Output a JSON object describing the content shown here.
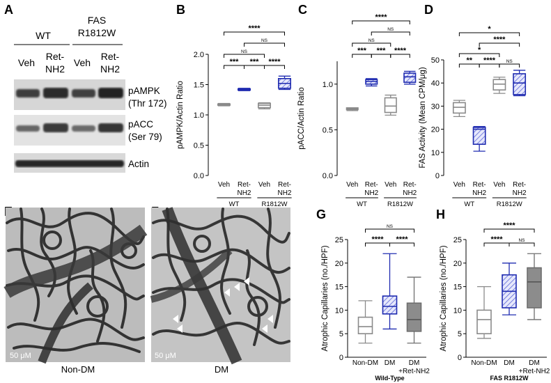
{
  "panels": {
    "A": "A",
    "B": "B",
    "C": "C",
    "D": "D",
    "E": "E",
    "F": "F",
    "G": "G",
    "H": "H"
  },
  "blot": {
    "wt_label": "WT",
    "fas_label_line1": "FAS",
    "fas_label_line2": "R1812W",
    "veh": "Veh",
    "ret_line1": "Ret-",
    "ret_line2": "NH2",
    "bands": [
      {
        "line1": "pAMPK",
        "line2": "(Thr 172)"
      },
      {
        "line1": "pACC",
        "line2": "(Ser 79)"
      },
      {
        "line1": "Actin",
        "line2": ""
      }
    ]
  },
  "images": {
    "E_scale": "50 μM",
    "F_scale": "50 μM",
    "E_caption": "Non-DM",
    "F_caption": "DM"
  },
  "colors": {
    "gray": "#8a8a8a",
    "blue": "#1f2bb0",
    "hatch_blue": "#2d39c4",
    "dark_gray_fill": "#8c8c8c"
  },
  "chart_data": [
    {
      "id": "B",
      "type": "box",
      "ylabel": "pAMPK/Actin Ratio",
      "ylim": [
        0.0,
        2.0
      ],
      "yticks": [
        "0.0",
        "0.5",
        "1.0",
        "1.5",
        "2.0"
      ],
      "categories": [
        [
          "Veh"
        ],
        [
          "Ret-",
          "NH2"
        ],
        [
          "Veh"
        ],
        [
          "Ret-",
          "NH2"
        ]
      ],
      "groups": [
        {
          "label": "WT",
          "span": [
            0,
            1
          ]
        },
        {
          "label": "R1812W",
          "span": [
            2,
            3
          ]
        }
      ],
      "boxes": [
        {
          "min": 1.15,
          "q1": 1.16,
          "median": 1.17,
          "q3": 1.18,
          "max": 1.19,
          "style": "gray"
        },
        {
          "min": 1.4,
          "q1": 1.41,
          "median": 1.42,
          "q3": 1.43,
          "max": 1.44,
          "style": "blue-hatch"
        },
        {
          "min": 1.1,
          "q1": 1.12,
          "median": 1.16,
          "q3": 1.19,
          "max": 1.2,
          "style": "gray"
        },
        {
          "min": 1.42,
          "q1": 1.44,
          "median": 1.52,
          "q3": 1.6,
          "max": 1.64,
          "style": "blue-hatch"
        }
      ],
      "brackets": [
        {
          "from": 0,
          "to": 1,
          "text": "***",
          "level": 0
        },
        {
          "from": 1,
          "to": 2,
          "text": "***",
          "level": 0
        },
        {
          "from": 2,
          "to": 3,
          "text": "****",
          "level": 0
        },
        {
          "from": 0,
          "to": 2,
          "text": "NS",
          "level": 1
        },
        {
          "from": 1,
          "to": 3,
          "text": "NS",
          "level": 2
        },
        {
          "from": 0,
          "to": 3,
          "text": "****",
          "level": 3
        }
      ]
    },
    {
      "id": "C",
      "type": "box",
      "ylabel": "pACC/Actin Ratio",
      "ylim": [
        0.0,
        1.25
      ],
      "yticks": [
        "0.0",
        "0.5",
        "1.0"
      ],
      "ytick_values": [
        0.0,
        0.5,
        1.0
      ],
      "categories": [
        [
          "Veh"
        ],
        [
          "Ret-",
          "NH2"
        ],
        [
          "Veh"
        ],
        [
          "Ret-",
          "NH2"
        ]
      ],
      "groups": [
        {
          "label": "WT",
          "span": [
            0,
            1
          ]
        },
        {
          "label": "R1812W",
          "span": [
            2,
            3
          ]
        }
      ],
      "boxes": [
        {
          "min": 0.71,
          "q1": 0.72,
          "median": 0.73,
          "q3": 0.74,
          "max": 0.74,
          "style": "gray"
        },
        {
          "min": 0.98,
          "q1": 1.0,
          "median": 1.03,
          "q3": 1.05,
          "max": 1.06,
          "style": "blue-hatch"
        },
        {
          "min": 0.66,
          "q1": 0.69,
          "median": 0.76,
          "q3": 0.85,
          "max": 0.88,
          "style": "gray"
        },
        {
          "min": 1.0,
          "q1": 1.02,
          "median": 1.08,
          "q3": 1.12,
          "max": 1.14,
          "style": "blue-hatch"
        }
      ],
      "brackets": [
        {
          "from": 0,
          "to": 1,
          "text": "***",
          "level": 0
        },
        {
          "from": 1,
          "to": 2,
          "text": "***",
          "level": 0
        },
        {
          "from": 2,
          "to": 3,
          "text": "****",
          "level": 0
        },
        {
          "from": 0,
          "to": 2,
          "text": "NS",
          "level": 1
        },
        {
          "from": 1,
          "to": 3,
          "text": "NS",
          "level": 2
        },
        {
          "from": 0,
          "to": 3,
          "text": "****",
          "level": 3
        }
      ]
    },
    {
      "id": "D",
      "type": "box",
      "ylabel": "FAS Activity (Mean CPM/μg)",
      "ylim": [
        0,
        50
      ],
      "yticks": [
        "0",
        "10",
        "20",
        "30",
        "40",
        "50"
      ],
      "categories": [
        [
          "Veh"
        ],
        [
          "Ret-",
          "NH2"
        ],
        [
          "Veh"
        ],
        [
          "Ret-",
          "NH2"
        ]
      ],
      "groups": [
        {
          "label": "WT",
          "span": [
            0,
            1
          ]
        },
        {
          "label": "R1812W",
          "span": [
            2,
            3
          ]
        }
      ],
      "boxes": [
        {
          "min": 25.5,
          "q1": 27.0,
          "median": 29.5,
          "q3": 31.5,
          "max": 32.5,
          "style": "gray"
        },
        {
          "min": 10.5,
          "q1": 13.5,
          "median": 20.0,
          "q3": 20.8,
          "max": 21.2,
          "style": "blue-hatch"
        },
        {
          "min": 35.5,
          "q1": 37.0,
          "median": 39.5,
          "q3": 41.5,
          "max": 42.5,
          "style": "gray"
        },
        {
          "min": 34.5,
          "q1": 35.0,
          "median": 40.0,
          "q3": 44.0,
          "max": 45.5,
          "style": "blue-hatch"
        }
      ],
      "brackets": [
        {
          "from": 0,
          "to": 1,
          "text": "**",
          "level": 0
        },
        {
          "from": 1,
          "to": 2,
          "text": "****",
          "level": 0
        },
        {
          "from": 2,
          "to": 3,
          "text": "NS",
          "level": 0
        },
        {
          "from": 0,
          "to": 2,
          "text": "*",
          "level": 1
        },
        {
          "from": 1,
          "to": 3,
          "text": "****",
          "level": 2
        },
        {
          "from": 0,
          "to": 3,
          "text": "*",
          "level": 3
        }
      ]
    },
    {
      "id": "G",
      "type": "box",
      "ylabel": "Atrophic Capillaries (no./HPF)",
      "xlabel": "Wild-Type",
      "ylim": [
        0,
        25
      ],
      "yticks": [
        "0",
        "5",
        "10",
        "15",
        "20",
        "25"
      ],
      "categories": [
        [
          "Non-DM"
        ],
        [
          "DM"
        ],
        [
          "DM",
          "+Ret-NH2"
        ]
      ],
      "boxes": [
        {
          "min": 3,
          "q1": 5,
          "median": 6.5,
          "q3": 8.5,
          "max": 12,
          "style": "white"
        },
        {
          "min": 6,
          "q1": 9.2,
          "median": 10.8,
          "q3": 13,
          "max": 22,
          "style": "blue-hatch"
        },
        {
          "min": 3,
          "q1": 5.5,
          "median": 8,
          "q3": 11.5,
          "max": 17,
          "style": "dark"
        }
      ],
      "brackets": [
        {
          "from": 0,
          "to": 1,
          "text": "****",
          "level": 0
        },
        {
          "from": 1,
          "to": 2,
          "text": "****",
          "level": 0
        },
        {
          "from": 0,
          "to": 2,
          "text": "NS",
          "level": 1
        }
      ]
    },
    {
      "id": "H",
      "type": "box",
      "ylabel": "Atrophic Capillaries (no./HPF)",
      "xlabel": "FAS R1812W",
      "ylim": [
        0,
        25
      ],
      "yticks": [
        "0",
        "5",
        "10",
        "15",
        "20",
        "25"
      ],
      "categories": [
        [
          "Non-DM"
        ],
        [
          "DM"
        ],
        [
          "DM",
          "+Ret-NH2"
        ]
      ],
      "boxes": [
        {
          "min": 4,
          "q1": 5,
          "median": 8,
          "q3": 10,
          "max": 15,
          "style": "white"
        },
        {
          "min": 9,
          "q1": 10.5,
          "median": 14,
          "q3": 17.5,
          "max": 20,
          "style": "blue-hatch"
        },
        {
          "min": 8,
          "q1": 10.5,
          "median": 16,
          "q3": 19,
          "max": 22,
          "style": "dark"
        }
      ],
      "brackets": [
        {
          "from": 0,
          "to": 1,
          "text": "****",
          "level": 0
        },
        {
          "from": 1,
          "to": 2,
          "text": "NS",
          "level": 0
        },
        {
          "from": 0,
          "to": 2,
          "text": "****",
          "level": 1
        }
      ]
    }
  ]
}
